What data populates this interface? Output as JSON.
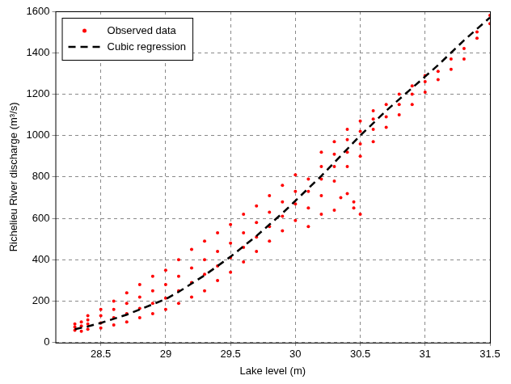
{
  "chart_data": {
    "type": "scatter",
    "x_label": "Lake level (m)",
    "y_label": "Richelieu River discharge (m³/s)",
    "xlim": [
      28.15,
      31.5
    ],
    "xticks": [
      28.5,
      29,
      29.5,
      30,
      30.5,
      31,
      31.5
    ],
    "ylim": [
      0,
      1600
    ],
    "yticks": [
      0,
      200,
      400,
      600,
      800,
      1000,
      1200,
      1400,
      1600
    ],
    "grid": true,
    "legend": "upper left",
    "series": [
      {
        "name": "Observed data",
        "color": "#ff0000",
        "marker": "circle",
        "x": [
          28.3,
          28.3,
          28.3,
          28.35,
          28.35,
          28.35,
          28.4,
          28.4,
          28.4,
          28.4,
          28.5,
          28.5,
          28.5,
          28.5,
          28.6,
          28.6,
          28.6,
          28.6,
          28.7,
          28.7,
          28.7,
          28.7,
          28.8,
          28.8,
          28.8,
          28.8,
          28.9,
          28.9,
          28.9,
          28.9,
          29.0,
          29.0,
          29.0,
          29.0,
          29.1,
          29.1,
          29.1,
          29.1,
          29.2,
          29.2,
          29.2,
          29.2,
          29.3,
          29.3,
          29.3,
          29.3,
          29.4,
          29.4,
          29.4,
          29.4,
          29.5,
          29.5,
          29.5,
          29.5,
          29.6,
          29.6,
          29.6,
          29.6,
          29.7,
          29.7,
          29.7,
          29.7,
          29.8,
          29.8,
          29.8,
          29.8,
          29.9,
          29.9,
          29.9,
          29.9,
          30.0,
          30.0,
          30.0,
          30.0,
          30.1,
          30.1,
          30.1,
          30.1,
          30.2,
          30.2,
          30.2,
          30.2,
          30.2,
          30.3,
          30.3,
          30.3,
          30.3,
          30.3,
          30.35,
          30.4,
          30.4,
          30.4,
          30.4,
          30.4,
          30.45,
          30.45,
          30.5,
          30.5,
          30.5,
          30.5,
          30.5,
          30.6,
          30.6,
          30.6,
          30.6,
          30.7,
          30.7,
          30.7,
          30.8,
          30.8,
          30.8,
          30.9,
          30.9,
          30.9,
          31.0,
          31.0,
          31.0,
          31.1,
          31.1,
          31.2,
          31.2,
          31.3,
          31.3,
          31.4,
          31.4,
          31.5,
          31.5
        ],
        "values": [
          60,
          75,
          90,
          55,
          80,
          100,
          65,
          90,
          110,
          130,
          70,
          95,
          130,
          160,
          85,
          120,
          160,
          200,
          100,
          140,
          190,
          240,
          120,
          165,
          220,
          280,
          140,
          190,
          250,
          320,
          160,
          215,
          280,
          350,
          190,
          250,
          320,
          400,
          220,
          290,
          360,
          450,
          250,
          330,
          400,
          490,
          300,
          370,
          440,
          530,
          340,
          410,
          480,
          570,
          390,
          460,
          530,
          620,
          440,
          510,
          580,
          660,
          490,
          560,
          630,
          710,
          540,
          610,
          680,
          760,
          590,
          670,
          730,
          810,
          560,
          650,
          730,
          790,
          620,
          710,
          790,
          850,
          920,
          640,
          780,
          850,
          910,
          970,
          700,
          720,
          850,
          920,
          980,
          1030,
          680,
          650,
          620,
          900,
          960,
          1020,
          1070,
          970,
          1030,
          1080,
          1120,
          1040,
          1090,
          1150,
          1100,
          1150,
          1200,
          1150,
          1200,
          1240,
          1210,
          1260,
          1290,
          1270,
          1310,
          1320,
          1370,
          1370,
          1420,
          1470,
          1500,
          1540,
          1580
        ]
      },
      {
        "name": "Cubic regression",
        "color": "#000000",
        "type": "line",
        "line_style": "dashed",
        "x": [
          28.3,
          28.4,
          28.5,
          28.6,
          28.7,
          28.8,
          28.9,
          29.0,
          29.1,
          29.2,
          29.3,
          29.4,
          29.5,
          29.6,
          29.7,
          29.8,
          29.9,
          30.0,
          30.1,
          30.2,
          30.3,
          30.4,
          30.5,
          30.6,
          30.7,
          30.8,
          30.9,
          31.0,
          31.1,
          31.2,
          31.3,
          31.4,
          31.5
        ],
        "values": [
          65,
          78,
          95,
          115,
          135,
          160,
          185,
          210,
          245,
          285,
          325,
          370,
          415,
          465,
          515,
          570,
          625,
          685,
          745,
          805,
          870,
          935,
          1000,
          1060,
          1120,
          1175,
          1230,
          1285,
          1340,
          1400,
          1460,
          1515,
          1570
        ]
      }
    ]
  }
}
